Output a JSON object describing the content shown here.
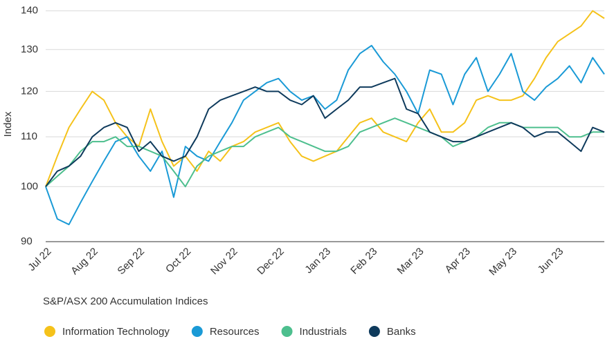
{
  "chart_data": {
    "type": "line",
    "y_label": "Index",
    "legend_title": "S&P/ASX 200 Accumulation Indices",
    "log_scale": true,
    "grid": true,
    "legend": "bottom-left",
    "ylim": [
      90,
      142
    ],
    "yticks": [
      90,
      100,
      110,
      120,
      130,
      140
    ],
    "categories": [
      "Jul 22",
      null,
      null,
      null,
      "Aug 22",
      null,
      null,
      null,
      "Sep 22",
      null,
      null,
      null,
      "Oct 22",
      null,
      null,
      null,
      "Nov 22",
      null,
      null,
      null,
      "Dec 22",
      null,
      null,
      null,
      "Jan 23",
      null,
      null,
      null,
      "Feb 23",
      null,
      null,
      null,
      "Mar 23",
      null,
      null,
      null,
      "Apr 23",
      null,
      null,
      null,
      "May 23",
      null,
      null,
      null,
      "Jun 23",
      null,
      null,
      null,
      null
    ],
    "series": [
      {
        "name": "Information Technology",
        "color": "#f5c21a",
        "values": [
          100,
          106,
          112,
          116,
          120,
          118,
          113,
          110,
          108,
          116,
          109,
          104,
          106,
          103,
          107,
          105,
          108,
          109,
          111,
          112,
          113,
          109,
          106,
          105,
          106,
          107,
          110,
          113,
          114,
          111,
          110,
          109,
          113,
          116,
          111,
          111,
          113,
          118,
          119,
          118,
          118,
          119,
          123,
          128,
          132,
          134,
          136,
          140,
          138
        ]
      },
      {
        "name": "Resources",
        "color": "#1a9ad6",
        "values": [
          100,
          94,
          93,
          97,
          101,
          105,
          109,
          110,
          106,
          103,
          107,
          98,
          108,
          106,
          105,
          109,
          113,
          118,
          120,
          122,
          123,
          120,
          118,
          119,
          116,
          118,
          125,
          129,
          131,
          127,
          124,
          120,
          115,
          125,
          124,
          117,
          124,
          128,
          120,
          124,
          129,
          120,
          118,
          121,
          123,
          126,
          122,
          128,
          124
        ]
      },
      {
        "name": "Industrials",
        "color": "#4dbf8e",
        "values": [
          100,
          102,
          104,
          107,
          109,
          109,
          110,
          108,
          108,
          107,
          106,
          103,
          100,
          104,
          106,
          107,
          108,
          108,
          110,
          111,
          112,
          110,
          109,
          108,
          107,
          107,
          108,
          111,
          112,
          113,
          114,
          113,
          112,
          111,
          110,
          108,
          109,
          110,
          112,
          113,
          113,
          112,
          112,
          112,
          112,
          110,
          110,
          111,
          111
        ]
      },
      {
        "name": "Banks",
        "color": "#0e3a5c",
        "values": [
          100,
          103,
          104,
          106,
          110,
          112,
          113,
          112,
          107,
          109,
          106,
          105,
          106,
          110,
          116,
          118,
          119,
          120,
          121,
          120,
          120,
          118,
          117,
          119,
          114,
          116,
          118,
          121,
          121,
          122,
          123,
          116,
          115,
          111,
          110,
          109,
          109,
          110,
          111,
          112,
          113,
          112,
          110,
          111,
          111,
          109,
          107,
          112,
          111
        ]
      }
    ]
  }
}
